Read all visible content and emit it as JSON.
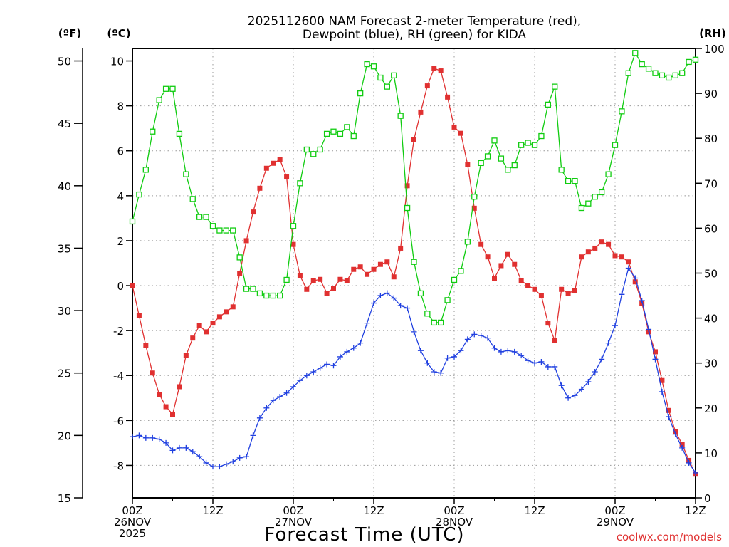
{
  "chart_data": {
    "type": "line",
    "title": [
      "2025112600 NAM Forecast 2-meter Temperature (red),",
      "Dewpoint (blue), RH (green) for KIDA"
    ],
    "xlabel": "Forecast Time (UTC)",
    "credit": "coolwx.com/models",
    "y_left_units": "(ºF)",
    "y_mid_units": "(ºC)",
    "y_right_units": "(RH)",
    "ylim_f": [
      15,
      51
    ],
    "ylim_c": [
      -9.4444,
      10.5556
    ],
    "ylim_rh": [
      0,
      100
    ],
    "yticks_f": [
      "15",
      "20",
      "25",
      "30",
      "35",
      "40",
      "45",
      "50"
    ],
    "yticks_c": [
      "-8",
      "-6",
      "-4",
      "-2",
      "0",
      "2",
      "4",
      "6",
      "8",
      "10"
    ],
    "yticks_rh": [
      "0",
      "10",
      "20",
      "30",
      "40",
      "50",
      "60",
      "70",
      "80",
      "90",
      "100"
    ],
    "xlim_hours": [
      0,
      84
    ],
    "xticks": [
      {
        "hour": 0,
        "lines": [
          "00Z",
          "26NOV",
          "2025"
        ]
      },
      {
        "hour": 12,
        "lines": [
          "12Z"
        ]
      },
      {
        "hour": 24,
        "lines": [
          "00Z",
          "27NOV"
        ]
      },
      {
        "hour": 36,
        "lines": [
          "12Z"
        ]
      },
      {
        "hour": 48,
        "lines": [
          "00Z",
          "28NOV"
        ]
      },
      {
        "hour": 60,
        "lines": [
          "12Z"
        ]
      },
      {
        "hour": 72,
        "lines": [
          "00Z",
          "29NOV"
        ]
      },
      {
        "hour": 84,
        "lines": [
          "12Z"
        ]
      }
    ],
    "grid": true,
    "series": [
      {
        "name": "2-meter Temperature",
        "unit": "ºF",
        "color": "#e03030",
        "marker": "filled-square",
        "hours": [
          0,
          1,
          2,
          3,
          4,
          5,
          6,
          7,
          8,
          9,
          10,
          11,
          12,
          13,
          14,
          15,
          16,
          17,
          18,
          19,
          20,
          21,
          22,
          23,
          24,
          25,
          26,
          27,
          28,
          29,
          30,
          31,
          32,
          33,
          34,
          35,
          36,
          37,
          38,
          39,
          40,
          41,
          42,
          43,
          44,
          45,
          46,
          47,
          48,
          49,
          50,
          51,
          52,
          53,
          54,
          55,
          56,
          57,
          58,
          59,
          60,
          61,
          62,
          63,
          64,
          65,
          66,
          67,
          68,
          69,
          70,
          71,
          72,
          73,
          74,
          75,
          76,
          77,
          78,
          79,
          80,
          81,
          82,
          83,
          84
        ],
        "values": [
          32.0,
          29.6,
          27.2,
          25.0,
          23.3,
          22.3,
          21.7,
          23.9,
          26.4,
          27.8,
          28.8,
          28.3,
          29.0,
          29.5,
          29.9,
          30.3,
          33.0,
          35.6,
          37.9,
          39.8,
          41.4,
          41.8,
          42.1,
          40.7,
          35.3,
          32.8,
          31.7,
          32.4,
          32.5,
          31.4,
          31.8,
          32.5,
          32.4,
          33.3,
          33.5,
          32.9,
          33.3,
          33.7,
          33.9,
          32.7,
          35.0,
          40.0,
          43.7,
          45.9,
          48.0,
          49.4,
          49.2,
          47.1,
          44.7,
          44.2,
          41.7,
          38.2,
          35.3,
          34.3,
          32.6,
          33.6,
          34.5,
          33.7,
          32.4,
          32.0,
          31.7,
          31.2,
          29.0,
          27.6,
          31.7,
          31.4,
          31.6,
          34.3,
          34.7,
          35.0,
          35.5,
          35.3,
          34.4,
          34.3,
          33.9,
          32.3,
          30.6,
          28.3,
          26.7,
          24.4,
          22.0,
          20.3,
          19.3,
          18.0,
          16.9
        ]
      },
      {
        "name": "Dewpoint",
        "unit": "ºF",
        "color": "#2040e0",
        "marker": "plus",
        "hours": [
          0,
          1,
          2,
          3,
          4,
          5,
          6,
          7,
          8,
          9,
          10,
          11,
          12,
          13,
          14,
          15,
          16,
          17,
          18,
          19,
          20,
          21,
          22,
          23,
          24,
          25,
          26,
          27,
          28,
          29,
          30,
          31,
          32,
          33,
          34,
          35,
          36,
          37,
          38,
          39,
          40,
          41,
          42,
          43,
          44,
          45,
          46,
          47,
          48,
          49,
          50,
          51,
          52,
          53,
          54,
          55,
          56,
          57,
          58,
          59,
          60,
          61,
          62,
          63,
          64,
          65,
          66,
          67,
          68,
          69,
          70,
          71,
          72,
          73,
          74,
          75,
          76,
          77,
          78,
          79,
          80,
          81,
          82,
          83,
          84
        ],
        "values": [
          19.9,
          20.0,
          19.8,
          19.8,
          19.7,
          19.4,
          18.8,
          19.0,
          19.0,
          18.7,
          18.3,
          17.8,
          17.5,
          17.5,
          17.7,
          17.9,
          18.2,
          18.3,
          20.0,
          21.4,
          22.2,
          22.8,
          23.1,
          23.4,
          23.9,
          24.4,
          24.8,
          25.1,
          25.4,
          25.7,
          25.6,
          26.3,
          26.7,
          27.0,
          27.4,
          29.0,
          30.6,
          31.2,
          31.4,
          31.0,
          30.4,
          30.2,
          28.3,
          26.8,
          25.8,
          25.1,
          25.0,
          26.2,
          26.3,
          26.8,
          27.7,
          28.1,
          28.0,
          27.8,
          27.0,
          26.7,
          26.8,
          26.7,
          26.4,
          26.0,
          25.8,
          25.9,
          25.5,
          25.5,
          24.0,
          23.0,
          23.2,
          23.7,
          24.3,
          25.1,
          26.1,
          27.4,
          28.8,
          31.3,
          33.4,
          32.6,
          30.8,
          28.5,
          26.1,
          23.5,
          21.5,
          20.1,
          19.0,
          17.8,
          17.0
        ]
      },
      {
        "name": "RH",
        "unit": "%",
        "color": "#10cc10",
        "marker": "open-square",
        "hours": [
          0,
          1,
          2,
          3,
          4,
          5,
          6,
          7,
          8,
          9,
          10,
          11,
          12,
          13,
          14,
          15,
          16,
          17,
          18,
          19,
          20,
          21,
          22,
          23,
          24,
          25,
          26,
          27,
          28,
          29,
          30,
          31,
          32,
          33,
          34,
          35,
          36,
          37,
          38,
          39,
          40,
          41,
          42,
          43,
          44,
          45,
          46,
          47,
          48,
          49,
          50,
          51,
          52,
          53,
          54,
          55,
          56,
          57,
          58,
          59,
          60,
          61,
          62,
          63,
          64,
          65,
          66,
          67,
          68,
          69,
          70,
          71,
          72,
          73,
          74,
          75,
          76,
          77,
          78,
          79,
          80,
          81,
          82,
          83,
          84
        ],
        "values": [
          61.5,
          67.5,
          73.0,
          81.5,
          88.5,
          91.0,
          91.0,
          81.0,
          72.0,
          66.5,
          62.5,
          62.5,
          60.5,
          59.5,
          59.5,
          59.5,
          53.5,
          46.5,
          46.5,
          45.5,
          45.0,
          45.0,
          45.0,
          48.5,
          60.5,
          70.0,
          77.5,
          76.5,
          77.5,
          81.0,
          81.5,
          81.0,
          82.5,
          80.5,
          90.0,
          96.5,
          96.0,
          93.5,
          91.5,
          94.0,
          85.0,
          64.5,
          52.5,
          45.5,
          41.0,
          39.0,
          39.0,
          44.0,
          48.5,
          50.5,
          57.0,
          67.0,
          74.5,
          76.0,
          79.5,
          75.5,
          73.0,
          74.0,
          78.5,
          79.0,
          78.5,
          80.5,
          87.5,
          91.5,
          73.0,
          70.5,
          70.5,
          64.5,
          65.5,
          67.0,
          68.0,
          72.0,
          78.5,
          86.0,
          94.5,
          99.0,
          96.5,
          95.5,
          94.5,
          94.0,
          93.5,
          94.0,
          94.5,
          97.0,
          97.5
        ]
      }
    ]
  }
}
